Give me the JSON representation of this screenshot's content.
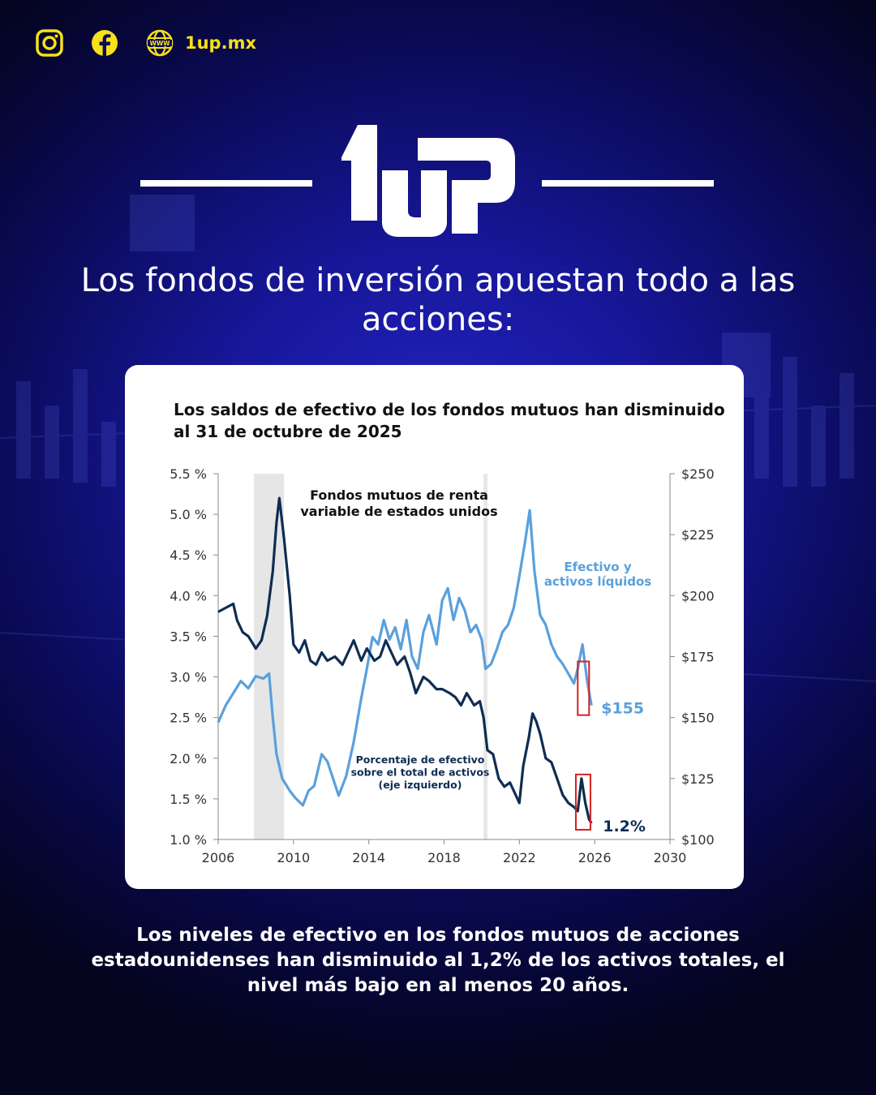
{
  "social": {
    "instagram_icon": "instagram-icon",
    "facebook_icon": "facebook-icon",
    "web_icon": "www-globe-icon",
    "site_label": "1up.mx"
  },
  "brand": {
    "logo_text": "1UP",
    "accent_color": "#f6e11a"
  },
  "headline": "Los fondos de inversión apuestan todo a las acciones:",
  "caption": "Los niveles de efectivo en los fondos mutuos de acciones estadounidenses han disminuido al 1,2% de los activos totales, el nivel más bajo en al menos 20 años.",
  "chart_data": {
    "type": "line",
    "title": "Los saldos de efectivo de los fondos mutuos han disminuido al 31 de octubre de 2025",
    "annotation_top": [
      "Fondos mutuos de renta",
      "variable de estados unidos"
    ],
    "x_ticks": [
      "2006",
      "2010",
      "2014",
      "2018",
      "2022",
      "2026",
      "2030"
    ],
    "xlim": [
      2006,
      2030
    ],
    "y_left": {
      "ticks": [
        "5.5 %",
        "5.0 %",
        "4.5 %",
        "4.0 %",
        "3.5 %",
        "3.0 %",
        "2.5 %",
        "2.0 %",
        "1.5 %",
        "1.0 %"
      ],
      "lim": [
        1.0,
        5.5
      ]
    },
    "y_right": {
      "ticks": [
        "$250",
        "$225",
        "$200",
        "$175",
        "$150",
        "$125",
        "$100"
      ],
      "lim": [
        100,
        250
      ]
    },
    "shaded_periods": [
      [
        2007.9,
        2009.5
      ],
      [
        2020.1,
        2020.3
      ]
    ],
    "series": [
      {
        "name": "Porcentaje de efectivo sobre el total de activos (eje izquierdo)",
        "label_lines": [
          "Porcentaje de efectivo",
          "sobre el total de activos",
          "(eje izquierdo)"
        ],
        "axis": "left",
        "color": "#0f2d52",
        "end_label": "1.2%",
        "points": [
          [
            2006.0,
            3.8
          ],
          [
            2006.4,
            3.85
          ],
          [
            2006.8,
            3.9
          ],
          [
            2007.0,
            3.7
          ],
          [
            2007.3,
            3.55
          ],
          [
            2007.6,
            3.5
          ],
          [
            2008.0,
            3.35
          ],
          [
            2008.3,
            3.45
          ],
          [
            2008.6,
            3.75
          ],
          [
            2008.9,
            4.3
          ],
          [
            2009.1,
            4.9
          ],
          [
            2009.25,
            5.2
          ],
          [
            2009.5,
            4.7
          ],
          [
            2009.8,
            4.0
          ],
          [
            2010.0,
            3.4
          ],
          [
            2010.3,
            3.3
          ],
          [
            2010.6,
            3.45
          ],
          [
            2010.9,
            3.2
          ],
          [
            2011.2,
            3.15
          ],
          [
            2011.5,
            3.3
          ],
          [
            2011.8,
            3.2
          ],
          [
            2012.2,
            3.25
          ],
          [
            2012.6,
            3.15
          ],
          [
            2012.9,
            3.3
          ],
          [
            2013.2,
            3.45
          ],
          [
            2013.6,
            3.2
          ],
          [
            2013.9,
            3.35
          ],
          [
            2014.3,
            3.2
          ],
          [
            2014.6,
            3.25
          ],
          [
            2014.9,
            3.45
          ],
          [
            2015.2,
            3.3
          ],
          [
            2015.5,
            3.15
          ],
          [
            2015.9,
            3.25
          ],
          [
            2016.2,
            3.05
          ],
          [
            2016.5,
            2.8
          ],
          [
            2016.9,
            3.0
          ],
          [
            2017.2,
            2.95
          ],
          [
            2017.6,
            2.85
          ],
          [
            2017.9,
            2.85
          ],
          [
            2018.3,
            2.8
          ],
          [
            2018.6,
            2.75
          ],
          [
            2018.9,
            2.65
          ],
          [
            2019.2,
            2.8
          ],
          [
            2019.6,
            2.65
          ],
          [
            2019.9,
            2.7
          ],
          [
            2020.1,
            2.5
          ],
          [
            2020.3,
            2.1
          ],
          [
            2020.6,
            2.05
          ],
          [
            2020.9,
            1.75
          ],
          [
            2021.2,
            1.65
          ],
          [
            2021.5,
            1.7
          ],
          [
            2021.8,
            1.55
          ],
          [
            2022.0,
            1.45
          ],
          [
            2022.2,
            1.9
          ],
          [
            2022.5,
            2.25
          ],
          [
            2022.7,
            2.55
          ],
          [
            2022.9,
            2.45
          ],
          [
            2023.1,
            2.3
          ],
          [
            2023.4,
            2.0
          ],
          [
            2023.7,
            1.95
          ],
          [
            2024.0,
            1.75
          ],
          [
            2024.3,
            1.55
          ],
          [
            2024.6,
            1.45
          ],
          [
            2024.9,
            1.4
          ],
          [
            2025.1,
            1.35
          ],
          [
            2025.3,
            1.75
          ],
          [
            2025.5,
            1.45
          ],
          [
            2025.7,
            1.25
          ],
          [
            2025.83,
            1.2
          ]
        ]
      },
      {
        "name": "Efectivo y activos líquidos",
        "label_lines": [
          "Efectivo y",
          "activos líquidos"
        ],
        "axis": "right",
        "color": "#5aa0dc",
        "end_label": "$155",
        "points": [
          [
            2006.0,
            148
          ],
          [
            2006.4,
            155
          ],
          [
            2006.8,
            160
          ],
          [
            2007.2,
            165
          ],
          [
            2007.6,
            162
          ],
          [
            2008.0,
            167
          ],
          [
            2008.4,
            166
          ],
          [
            2008.7,
            168
          ],
          [
            2008.9,
            150
          ],
          [
            2009.1,
            135
          ],
          [
            2009.4,
            125
          ],
          [
            2009.8,
            120
          ],
          [
            2010.1,
            117
          ],
          [
            2010.5,
            114
          ],
          [
            2010.8,
            120
          ],
          [
            2011.1,
            122
          ],
          [
            2011.5,
            135
          ],
          [
            2011.8,
            132
          ],
          [
            2012.1,
            125
          ],
          [
            2012.4,
            118
          ],
          [
            2012.8,
            126
          ],
          [
            2013.2,
            140
          ],
          [
            2013.6,
            158
          ],
          [
            2013.9,
            170
          ],
          [
            2014.2,
            183
          ],
          [
            2014.5,
            180
          ],
          [
            2014.8,
            190
          ],
          [
            2015.1,
            182
          ],
          [
            2015.4,
            187
          ],
          [
            2015.7,
            178
          ],
          [
            2016.0,
            190
          ],
          [
            2016.3,
            175
          ],
          [
            2016.6,
            170
          ],
          [
            2016.9,
            185
          ],
          [
            2017.2,
            192
          ],
          [
            2017.6,
            180
          ],
          [
            2017.9,
            198
          ],
          [
            2018.2,
            203
          ],
          [
            2018.5,
            190
          ],
          [
            2018.8,
            199
          ],
          [
            2019.1,
            194
          ],
          [
            2019.4,
            185
          ],
          [
            2019.7,
            188
          ],
          [
            2020.0,
            182
          ],
          [
            2020.2,
            170
          ],
          [
            2020.5,
            172
          ],
          [
            2020.8,
            178
          ],
          [
            2021.1,
            185
          ],
          [
            2021.4,
            188
          ],
          [
            2021.7,
            195
          ],
          [
            2022.0,
            208
          ],
          [
            2022.3,
            222
          ],
          [
            2022.55,
            235
          ],
          [
            2022.8,
            210
          ],
          [
            2023.1,
            192
          ],
          [
            2023.4,
            188
          ],
          [
            2023.7,
            180
          ],
          [
            2024.0,
            175
          ],
          [
            2024.3,
            172
          ],
          [
            2024.6,
            168
          ],
          [
            2024.9,
            164
          ],
          [
            2025.1,
            170
          ],
          [
            2025.35,
            180
          ],
          [
            2025.6,
            165
          ],
          [
            2025.83,
            155
          ]
        ]
      }
    ],
    "highlight_boxes": [
      "end of both series in late 2025"
    ],
    "grid": false,
    "legend": "none (inline labels)"
  }
}
